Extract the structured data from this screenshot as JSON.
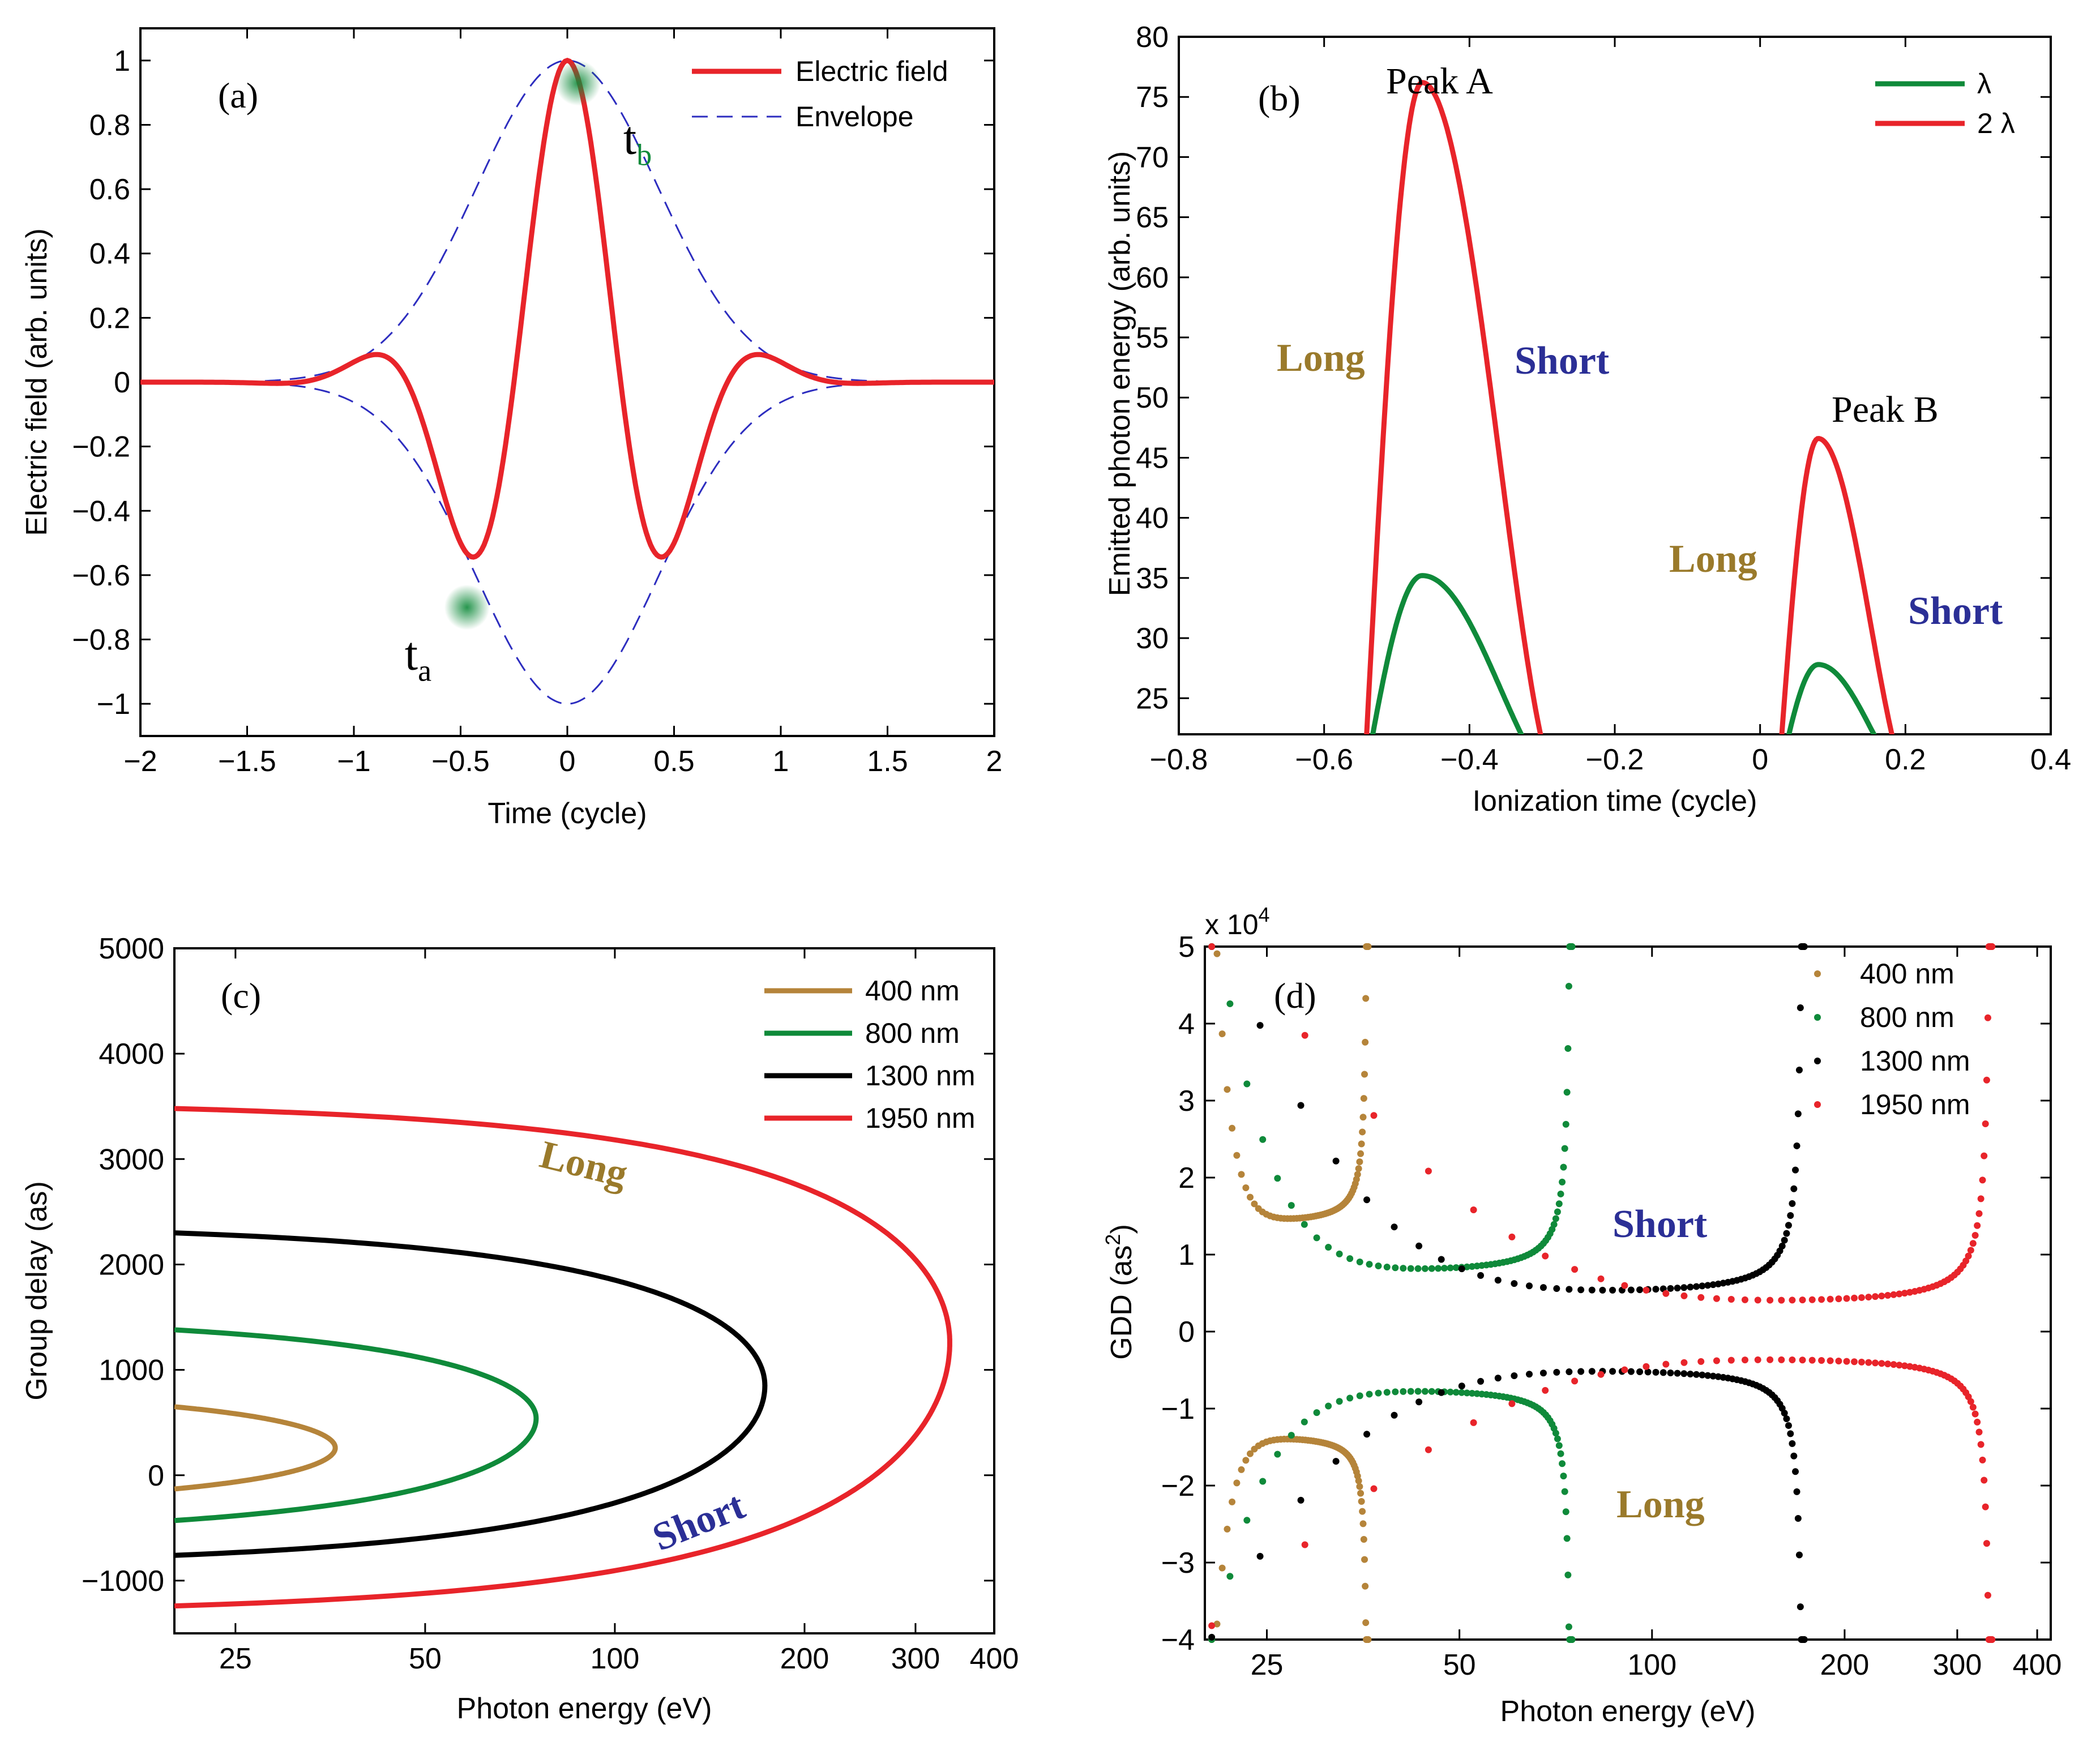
{
  "chart_data": [
    {
      "panel": "(a)",
      "type": "line",
      "xlabel": "Time (cycle)",
      "ylabel": "Electric field (arb. units)",
      "xlim": [
        -2,
        2
      ],
      "ylim": [
        -1.1,
        1.1
      ],
      "xticks": [
        "-2",
        "-1.5",
        "-1",
        "-0.5",
        "0",
        "0.5",
        "1",
        "1.5",
        "2"
      ],
      "yticks": [
        "1",
        "0.8",
        "0.6",
        "0.4",
        "0.2",
        "0",
        "-0.2",
        "-0.4",
        "-0.6",
        "-0.8",
        "-1"
      ],
      "legend": [
        "Electric field",
        "Envelope"
      ],
      "series": [
        {
          "name": "Electric field",
          "color": "#e8242a",
          "style": "solid",
          "formula": "exp(-2.77*t^2)*cos(2*pi*t)"
        },
        {
          "name": "Envelope",
          "color": "#2d2dbf",
          "style": "dashed",
          "formula": "±exp(-2.77*t^2)"
        }
      ],
      "markers": [
        {
          "label": "t",
          "sub": "a",
          "t": -0.47,
          "value": -0.7
        },
        {
          "label": "t",
          "sub": "b",
          "t": 0.05,
          "value": 0.93
        }
      ]
    },
    {
      "panel": "(b)",
      "type": "line",
      "xlabel": "Ionization time (cycle)",
      "ylabel": "Emitted photon energy (arb. units)",
      "xlim": [
        -0.8,
        0.4
      ],
      "ylim": [
        22,
        80
      ],
      "xticks": [
        "-0.8",
        "-0.6",
        "-0.4",
        "-0.2",
        "0",
        "0.2",
        "0.4"
      ],
      "yticks": [
        "80",
        "75",
        "70",
        "65",
        "60",
        "55",
        "50",
        "45",
        "40",
        "35",
        "30",
        "25"
      ],
      "legend": [
        "λ",
        "2 λ"
      ],
      "series": [
        {
          "name": "λ",
          "color": "#0f8a3a",
          "peaks": [
            {
              "x": -0.465,
              "y": 35.2
            },
            {
              "x": 0.08,
              "y": 27.8
            }
          ]
        },
        {
          "name": "2 λ",
          "color": "#e8242a",
          "peaks": [
            {
              "x": -0.465,
              "y": 76.2
            },
            {
              "x": 0.08,
              "y": 46.6
            }
          ]
        }
      ],
      "annotations": [
        "Peak A",
        "Peak B",
        "Long",
        "Short",
        "Long",
        "Short"
      ]
    },
    {
      "panel": "(c)",
      "type": "line",
      "xlabel": "Photon energy (eV)",
      "ylabel": "Group delay (as)",
      "xscale": "log",
      "xlim": [
        20,
        400
      ],
      "ylim": [
        -1500,
        5000
      ],
      "xticks": [
        "25",
        "50",
        "100",
        "200",
        "300",
        "400"
      ],
      "yticks": [
        "5000",
        "4000",
        "3000",
        "2000",
        "1000",
        "0",
        "-1000"
      ],
      "legend": [
        "400 nm",
        "800 nm",
        "1300 nm",
        "1950 nm"
      ],
      "series": [
        {
          "name": "400 nm",
          "color": "#b5843a",
          "cutoff_eV": 36,
          "long_start_as": 650,
          "short_start_as": -130,
          "turn_as": 260
        },
        {
          "name": "800 nm",
          "color": "#0f8a3a",
          "cutoff_eV": 75,
          "long_start_as": 1380,
          "short_start_as": -430,
          "turn_as": 540
        },
        {
          "name": "1300 nm",
          "color": "#000000",
          "cutoff_eV": 173,
          "long_start_as": 2300,
          "short_start_as": -760,
          "turn_as": 850
        },
        {
          "name": "1950 nm",
          "color": "#e8242a",
          "cutoff_eV": 340,
          "long_start_as": 3480,
          "short_start_as": -1240,
          "turn_as": 1260
        }
      ],
      "annotations": [
        "Long",
        "Short"
      ]
    },
    {
      "panel": "(d)",
      "type": "scatter",
      "xlabel": "Photon energy (eV)",
      "ylabel": "GDD (as2)",
      "ylabel_main": "GDD (as",
      "ylabel_sup": "2",
      "ylabel_close": ")",
      "exponent_base": "x 10",
      "exponent_power": "4",
      "xscale": "log",
      "xlim": [
        20,
        420
      ],
      "ylim": [
        -4,
        5
      ],
      "xticks": [
        "25",
        "50",
        "100",
        "200",
        "300",
        "400"
      ],
      "yticks": [
        "5",
        "4",
        "3",
        "2",
        "1",
        "0",
        "-1",
        "-2",
        "-3",
        "-4"
      ],
      "legend": [
        "400 nm",
        "800 nm",
        "1300 nm",
        "1950 nm"
      ],
      "series": [
        {
          "name": "400 nm",
          "color": "#b5843a",
          "cutoff_eV": 36,
          "min_short": 1.35,
          "min_long": -1.3
        },
        {
          "name": "800 nm",
          "color": "#0f8a3a",
          "cutoff_eV": 75,
          "min_short": 0.7,
          "min_long": -0.68
        },
        {
          "name": "1300 nm",
          "color": "#000000",
          "cutoff_eV": 173,
          "min_short": 0.42,
          "min_long": -0.42
        },
        {
          "name": "1950 nm",
          "color": "#e8242a",
          "cutoff_eV": 340,
          "min_short": 0.29,
          "min_long": -0.27
        }
      ],
      "annotations": [
        "Short",
        "Long"
      ]
    }
  ],
  "labels": {
    "a": {
      "panel": "(a)",
      "legend1": "Electric field",
      "legend2": "Envelope"
    },
    "b": {
      "panel": "(b)",
      "peakA": "Peak A",
      "peakB": "Peak B",
      "long1": "Long",
      "short1": "Short",
      "long2": "Long",
      "short2": "Short",
      "legend1": "λ",
      "legend2": "2 λ"
    },
    "c": {
      "panel": "(c)",
      "long": "Long",
      "short": "Short"
    },
    "d": {
      "panel": "(d)",
      "short": "Short",
      "long": "Long"
    }
  }
}
